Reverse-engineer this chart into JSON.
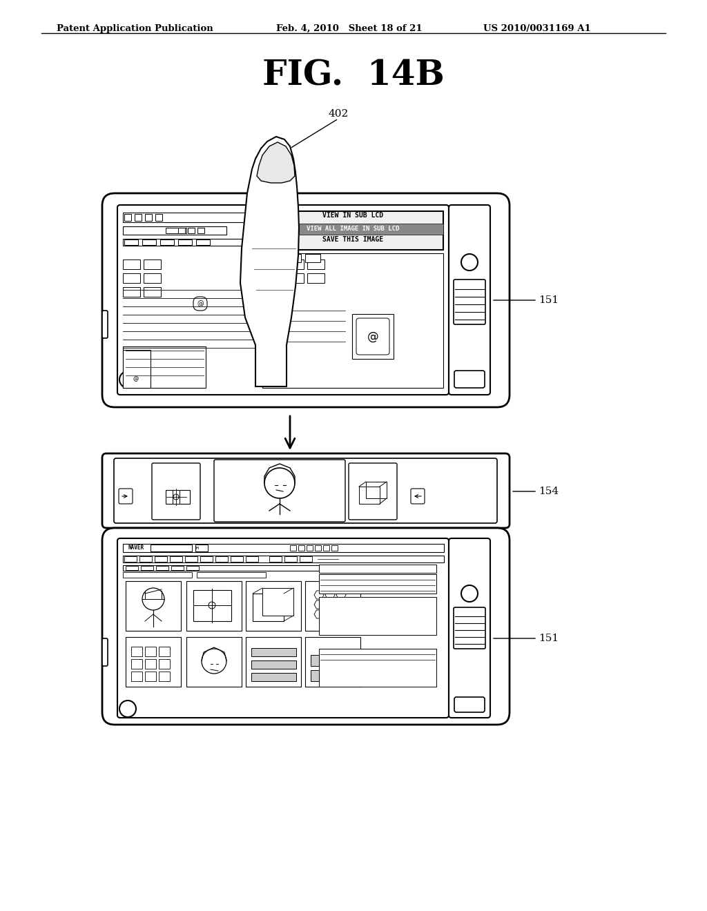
{
  "header_left": "Patent Application Publication",
  "header_middle": "Feb. 4, 2010   Sheet 18 of 21",
  "header_right": "US 2010/0031169 A1",
  "figure_title": "FIG.  14B",
  "label_402": "402",
  "label_151_top": "151",
  "label_154": "154",
  "label_151_bot": "151",
  "bg_color": "#ffffff",
  "line_color": "#000000"
}
